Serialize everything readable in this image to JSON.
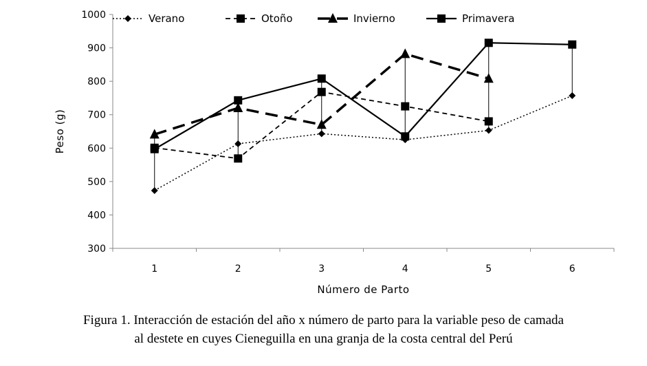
{
  "chart_data": {
    "type": "line",
    "xlabel": "Número de Parto",
    "ylabel": "Peso (g)",
    "ylim": [
      300,
      1000
    ],
    "yticks": [
      300,
      400,
      500,
      600,
      700,
      800,
      900,
      1000
    ],
    "xticks": [
      1,
      2,
      3,
      4,
      5,
      6
    ],
    "grid": false,
    "legend_position": "top",
    "series": [
      {
        "name": "Verano",
        "x": [
          1,
          2,
          3,
          4,
          5,
          6
        ],
        "values": [
          473,
          613,
          643,
          625,
          653,
          757
        ],
        "line": "dotted",
        "marker": "diamond",
        "color": "#000000"
      },
      {
        "name": "Otoño",
        "x": [
          1,
          2,
          3,
          4,
          5
        ],
        "values": [
          601,
          569,
          768,
          725,
          680
        ],
        "line": "dashed",
        "marker": "square",
        "color": "#000000"
      },
      {
        "name": "Invierno",
        "x": [
          1,
          2,
          3,
          4,
          5
        ],
        "values": [
          641,
          720,
          670,
          882,
          808
        ],
        "line": "long-dashed",
        "marker": "triangle",
        "color": "#000000"
      },
      {
        "name": "Primavera",
        "x": [
          1,
          2,
          3,
          4,
          5,
          6
        ],
        "values": [
          597,
          743,
          808,
          635,
          915,
          910
        ],
        "line": "solid",
        "marker": "square",
        "color": "#000000"
      }
    ]
  },
  "caption": {
    "line1": "Figura 1.  Interacción de estación del año x número de parto para la variable peso de camada",
    "line2": "al destete en cuyes Cieneguilla en una granja de la costa central del Perú"
  }
}
